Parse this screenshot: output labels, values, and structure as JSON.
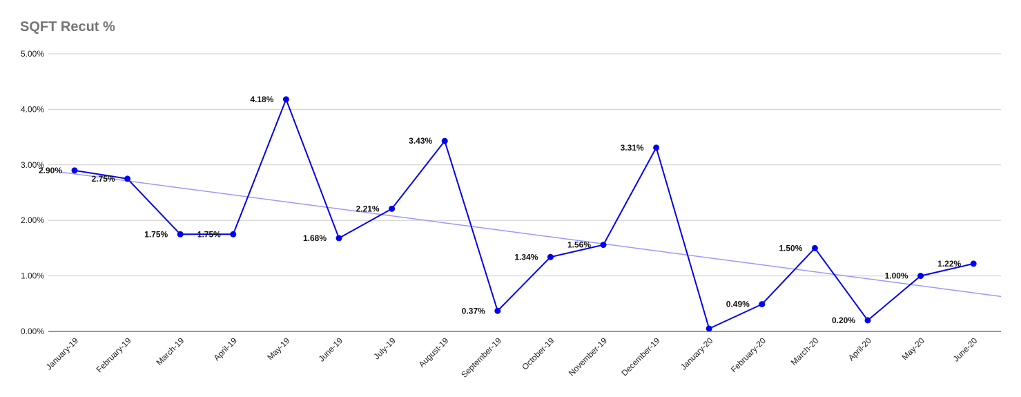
{
  "chart_data": {
    "type": "line",
    "title": "SQFT Recut %",
    "xlabel": "",
    "ylabel": "",
    "ylim": [
      0,
      5
    ],
    "yticks": [
      "0.00%",
      "1.00%",
      "2.00%",
      "3.00%",
      "4.00%",
      "5.00%"
    ],
    "categories": [
      "January-19",
      "February-19",
      "March-19",
      "April-19",
      "May-19",
      "June-19",
      "July-19",
      "August-19",
      "September-19",
      "October-19",
      "November-19",
      "December-19",
      "January-20",
      "February-20",
      "March-20",
      "April-20",
      "May-20",
      "June-20"
    ],
    "series": [
      {
        "values": [
          2.9,
          2.75,
          1.75,
          1.75,
          4.18,
          1.68,
          2.21,
          3.43,
          0.37,
          1.34,
          1.56,
          3.31,
          0.05,
          0.49,
          1.5,
          0.2,
          1.0,
          1.22
        ],
        "labels": [
          "2.90%",
          "2.75%",
          "1.75%",
          "1.75%",
          "4.18%",
          "1.68%",
          "2.21%",
          "3.43%",
          "0.37%",
          "1.34%",
          "1.56%",
          "3.31%",
          "",
          "0.49%",
          "1.50%",
          "0.20%",
          "1.00%",
          "1.22%"
        ],
        "color": "#0000ee"
      }
    ],
    "trendline": {
      "color": "#9999ff",
      "start": 2.87,
      "end": 0.63
    },
    "grid": true,
    "legend": "none"
  }
}
